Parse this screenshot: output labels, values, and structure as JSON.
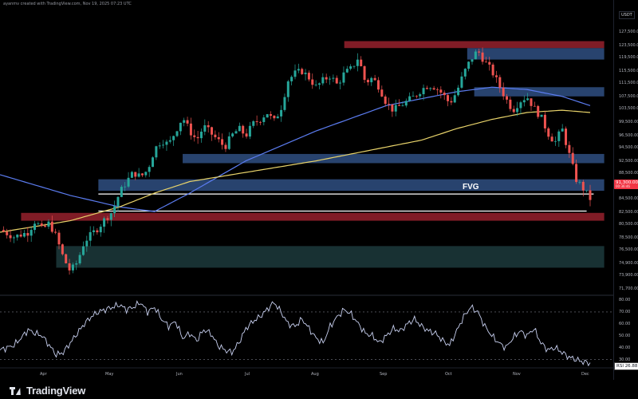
{
  "header": {
    "attribution": "ayanmv created with TradingView.com, Nov 19, 2025 07:23 UTC",
    "currency": "USDT"
  },
  "annotation": {
    "fvg_label": "FVG"
  },
  "price_tag": {
    "price": "91,300.00",
    "countdown": "00:36:46"
  },
  "rsi_tag": {
    "label": "RSI",
    "value": "26.88"
  },
  "brand": {
    "name": "TradingView"
  },
  "colors": {
    "up": "#26a69a",
    "down": "#ef5350",
    "ma_fast": "#5b7cf0",
    "ma_slow": "#e8d36a",
    "rsi_line": "#c8d0f0",
    "zone_blue": "#2c4a7a",
    "zone_red": "#8e1f2a",
    "zone_teal": "#1c3a3c"
  },
  "chart_data": {
    "type": "candlestick",
    "y_ticks": [
      "127,500.00",
      "123,500.00",
      "119,500.00",
      "115,500.00",
      "111,500.00",
      "107,500.00",
      "103,500.00",
      "99,500.00",
      "96,500.00",
      "94,500.00",
      "92,500.00",
      "88,500.00",
      "86,500.00",
      "84,500.00",
      "82,500.00",
      "80,500.00",
      "78,500.00",
      "76,500.00",
      "74,900.00",
      "73,900.00",
      "71,700.00"
    ],
    "x_ticks": [
      "Apr",
      "May",
      "Jun",
      "Jul",
      "Aug",
      "Sep",
      "Oct",
      "Nov",
      "Dec"
    ],
    "rsi_ticks": [
      "80.00",
      "70.00",
      "60.00",
      "50.00",
      "40.00",
      "30.00"
    ],
    "price_path": [
      [
        0,
        84.5
      ],
      [
        4,
        83.0
      ],
      [
        8,
        84.0
      ],
      [
        10,
        86.5
      ],
      [
        12,
        84.5
      ],
      [
        14,
        86.0
      ],
      [
        16,
        83.0
      ],
      [
        18,
        78.5
      ],
      [
        20,
        75.5
      ],
      [
        22,
        77.5
      ],
      [
        24,
        82.0
      ],
      [
        26,
        83.5
      ],
      [
        28,
        85.0
      ],
      [
        30,
        87.0
      ],
      [
        32,
        88.5
      ],
      [
        34,
        92.5
      ],
      [
        36,
        95.0
      ],
      [
        38,
        97.0
      ],
      [
        40,
        96.0
      ],
      [
        42,
        97.5
      ],
      [
        44,
        102.0
      ],
      [
        46,
        104.0
      ],
      [
        48,
        103.0
      ],
      [
        50,
        106.0
      ],
      [
        52,
        109.0
      ],
      [
        54,
        106.0
      ],
      [
        56,
        104.0
      ],
      [
        58,
        107.0
      ],
      [
        60,
        105.5
      ],
      [
        62,
        104.0
      ],
      [
        64,
        102.5
      ],
      [
        66,
        105.0
      ],
      [
        68,
        106.5
      ],
      [
        70,
        105.0
      ],
      [
        72,
        107.5
      ],
      [
        74,
        108.5
      ],
      [
        76,
        110.0
      ],
      [
        78,
        108.0
      ],
      [
        80,
        111.0
      ],
      [
        82,
        117.0
      ],
      [
        84,
        118.5
      ],
      [
        86,
        119.0
      ],
      [
        88,
        117.5
      ],
      [
        90,
        115.5
      ],
      [
        92,
        117.0
      ],
      [
        94,
        118.0
      ],
      [
        96,
        116.0
      ],
      [
        98,
        118.5
      ],
      [
        100,
        119.5
      ],
      [
        102,
        122.0
      ],
      [
        104,
        116.5
      ],
      [
        106,
        117.5
      ],
      [
        108,
        115.5
      ],
      [
        110,
        112.0
      ],
      [
        112,
        110.5
      ],
      [
        114,
        111.5
      ],
      [
        116,
        112.5
      ],
      [
        118,
        113.5
      ],
      [
        120,
        115.0
      ],
      [
        122,
        116.0
      ],
      [
        124,
        115.5
      ],
      [
        126,
        114.0
      ],
      [
        128,
        112.0
      ],
      [
        130,
        114.5
      ],
      [
        132,
        118.5
      ],
      [
        134,
        121.5
      ],
      [
        136,
        123.5
      ],
      [
        138,
        121.0
      ],
      [
        140,
        119.0
      ],
      [
        142,
        116.0
      ],
      [
        144,
        113.0
      ],
      [
        146,
        110.5
      ],
      [
        148,
        112.5
      ],
      [
        150,
        113.5
      ],
      [
        152,
        111.0
      ],
      [
        154,
        109.0
      ],
      [
        156,
        105.5
      ],
      [
        158,
        103.5
      ],
      [
        160,
        106.5
      ],
      [
        162,
        101.0
      ],
      [
        164,
        95.5
      ],
      [
        166,
        93.5
      ],
      [
        168,
        91.3
      ]
    ],
    "ma_fast": [
      [
        0,
        96.5
      ],
      [
        20,
        92.0
      ],
      [
        34,
        89.5
      ],
      [
        44,
        88.5
      ],
      [
        54,
        92.5
      ],
      [
        70,
        99.5
      ],
      [
        90,
        106.0
      ],
      [
        110,
        111.5
      ],
      [
        120,
        113.0
      ],
      [
        130,
        114.5
      ],
      [
        140,
        115.5
      ],
      [
        150,
        115.0
      ],
      [
        160,
        113.5
      ],
      [
        168,
        111.5
      ]
    ],
    "ma_slow": [
      [
        0,
        84.0
      ],
      [
        20,
        86.5
      ],
      [
        34,
        89.5
      ],
      [
        44,
        92.5
      ],
      [
        54,
        95.0
      ],
      [
        70,
        97.0
      ],
      [
        90,
        99.5
      ],
      [
        110,
        102.5
      ],
      [
        120,
        104.0
      ],
      [
        130,
        106.5
      ],
      [
        140,
        108.5
      ],
      [
        150,
        110.0
      ],
      [
        160,
        110.5
      ],
      [
        168,
        110.0
      ]
    ],
    "zones": [
      {
        "name": "zone-blue-top",
        "color": "blue",
        "from_x": 133,
        "to_x": 172,
        "y_low": 121.5,
        "y_high": 124.0
      },
      {
        "name": "zone-red-top",
        "color": "red",
        "from_x": 98,
        "to_x": 172,
        "y_low": 124.0,
        "y_high": 125.5
      },
      {
        "name": "zone-blue-mid",
        "color": "blue",
        "from_x": 135,
        "to_x": 172,
        "y_low": 113.5,
        "y_high": 115.5
      },
      {
        "name": "zone-blue-100k",
        "color": "blue",
        "from_x": 52,
        "to_x": 172,
        "y_low": 99.0,
        "y_high": 101.0
      },
      {
        "name": "zone-blue-94k",
        "color": "blue",
        "from_x": 28,
        "to_x": 172,
        "y_low": 93.0,
        "y_high": 95.5
      },
      {
        "name": "zone-red-87k",
        "color": "red",
        "from_x": 6,
        "to_x": 172,
        "y_low": 86.5,
        "y_high": 88.2
      },
      {
        "name": "zone-teal-78k",
        "color": "teal",
        "from_x": 16,
        "to_x": 172,
        "y_low": 76.3,
        "y_high": 81.0
      }
    ],
    "lines": [
      {
        "name": "fvg-upper-line",
        "from_x": 28,
        "to_x": 169,
        "y": 92.3
      },
      {
        "name": "fvg-lower-line",
        "from_x": 28,
        "to_x": 167,
        "y": 88.6
      }
    ],
    "rsi": [
      [
        0,
        38
      ],
      [
        4,
        42
      ],
      [
        6,
        48
      ],
      [
        8,
        55
      ],
      [
        10,
        52
      ],
      [
        12,
        50
      ],
      [
        14,
        42
      ],
      [
        16,
        34
      ],
      [
        18,
        36
      ],
      [
        20,
        44
      ],
      [
        22,
        52
      ],
      [
        24,
        60
      ],
      [
        26,
        66
      ],
      [
        28,
        70
      ],
      [
        30,
        72
      ],
      [
        32,
        74
      ],
      [
        34,
        76
      ],
      [
        36,
        72
      ],
      [
        38,
        74
      ],
      [
        40,
        78
      ],
      [
        42,
        70
      ],
      [
        44,
        74
      ],
      [
        46,
        64
      ],
      [
        48,
        58
      ],
      [
        50,
        62
      ],
      [
        52,
        48
      ],
      [
        54,
        52
      ],
      [
        56,
        46
      ],
      [
        58,
        55
      ],
      [
        60,
        52
      ],
      [
        62,
        42
      ],
      [
        64,
        38
      ],
      [
        66,
        36
      ],
      [
        68,
        44
      ],
      [
        70,
        56
      ],
      [
        72,
        62
      ],
      [
        74,
        66
      ],
      [
        76,
        72
      ],
      [
        78,
        78
      ],
      [
        80,
        70
      ],
      [
        82,
        60
      ],
      [
        84,
        58
      ],
      [
        86,
        64
      ],
      [
        88,
        56
      ],
      [
        90,
        48
      ],
      [
        92,
        44
      ],
      [
        94,
        58
      ],
      [
        96,
        66
      ],
      [
        98,
        72
      ],
      [
        100,
        68
      ],
      [
        102,
        60
      ],
      [
        104,
        52
      ],
      [
        106,
        50
      ],
      [
        108,
        44
      ],
      [
        110,
        50
      ],
      [
        112,
        56
      ],
      [
        114,
        54
      ],
      [
        116,
        60
      ],
      [
        118,
        64
      ],
      [
        120,
        58
      ],
      [
        122,
        54
      ],
      [
        124,
        52
      ],
      [
        126,
        46
      ],
      [
        128,
        42
      ],
      [
        130,
        54
      ],
      [
        132,
        66
      ],
      [
        134,
        74
      ],
      [
        136,
        70
      ],
      [
        138,
        58
      ],
      [
        140,
        50
      ],
      [
        142,
        44
      ],
      [
        144,
        40
      ],
      [
        146,
        48
      ],
      [
        148,
        54
      ],
      [
        150,
        50
      ],
      [
        152,
        56
      ],
      [
        154,
        44
      ],
      [
        156,
        38
      ],
      [
        158,
        40
      ],
      [
        160,
        36
      ],
      [
        162,
        32
      ],
      [
        164,
        30
      ],
      [
        166,
        28
      ],
      [
        168,
        26.88
      ]
    ]
  }
}
